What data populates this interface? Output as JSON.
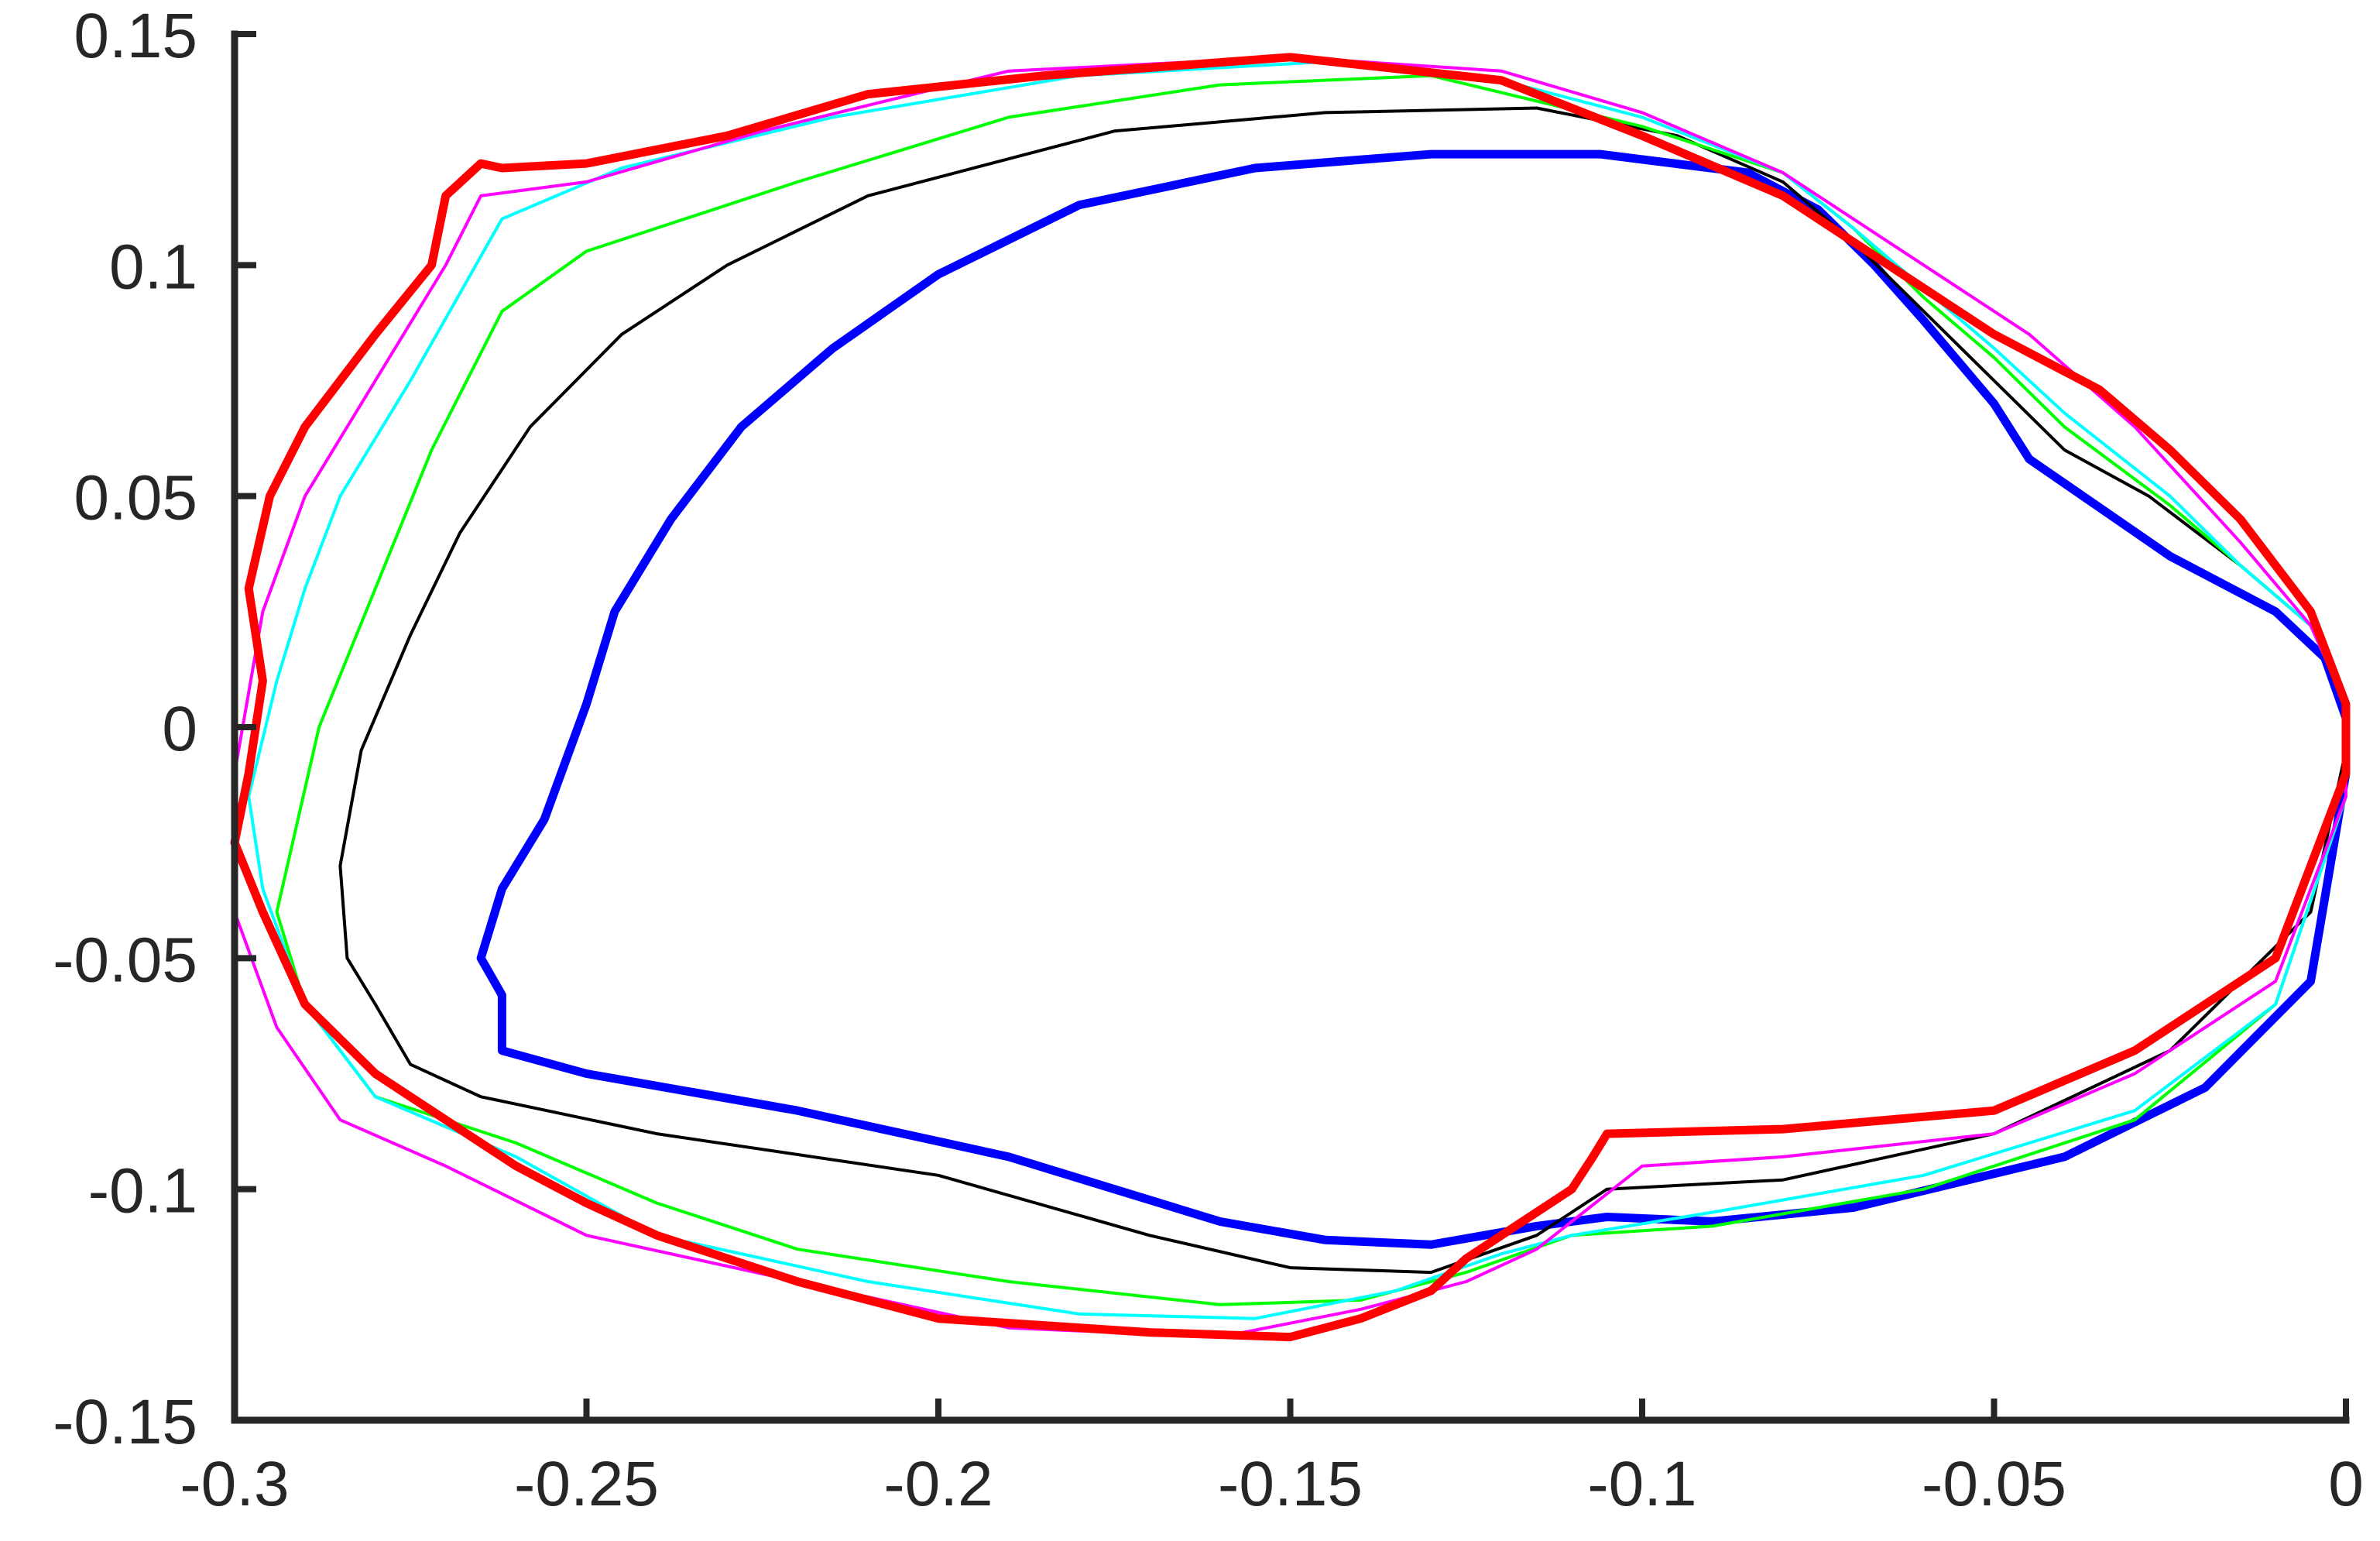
{
  "chart_data": {
    "type": "line",
    "title": "",
    "xlabel": "",
    "ylabel": "",
    "xlim": [
      -0.3,
      0
    ],
    "ylim": [
      -0.15,
      0.15
    ],
    "grid": false,
    "legend": "none",
    "x_ticks": [
      {
        "value": -0.3,
        "label": "-0.3"
      },
      {
        "value": -0.25,
        "label": "-0.25"
      },
      {
        "value": -0.2,
        "label": "-0.2"
      },
      {
        "value": -0.15,
        "label": "-0.15"
      },
      {
        "value": -0.1,
        "label": "-0.1"
      },
      {
        "value": -0.05,
        "label": "-0.05"
      },
      {
        "value": 0,
        "label": "0"
      }
    ],
    "y_ticks": [
      {
        "value": 0.15,
        "label": "0.15"
      },
      {
        "value": 0.1,
        "label": "0.1"
      },
      {
        "value": 0.05,
        "label": "0.05"
      },
      {
        "value": 0,
        "label": "0"
      },
      {
        "value": -0.05,
        "label": "-0.05"
      },
      {
        "value": -0.1,
        "label": "-0.1"
      },
      {
        "value": -0.15,
        "label": "-0.15"
      }
    ],
    "series": [
      {
        "color": "#0000ff",
        "points": [
          [
            -0.106,
            0.124
          ],
          [
            -0.13,
            0.124
          ],
          [
            -0.155,
            0.121
          ],
          [
            -0.18,
            0.113
          ],
          [
            -0.2,
            0.098
          ],
          [
            -0.215,
            0.082
          ],
          [
            -0.228,
            0.065
          ],
          [
            -0.238,
            0.045
          ],
          [
            -0.246,
            0.025
          ],
          [
            -0.25,
            0.005
          ],
          [
            -0.256,
            -0.02
          ],
          [
            -0.262,
            -0.035
          ],
          [
            -0.265,
            -0.05
          ],
          [
            -0.262,
            -0.058
          ],
          [
            -0.262,
            -0.07
          ],
          [
            -0.25,
            -0.075
          ],
          [
            -0.22,
            -0.083
          ],
          [
            -0.19,
            -0.093
          ],
          [
            -0.16,
            -0.107
          ],
          [
            -0.145,
            -0.111
          ],
          [
            -0.13,
            -0.112
          ],
          [
            -0.115,
            -0.108
          ],
          [
            -0.105,
            -0.106
          ],
          [
            -0.09,
            -0.107
          ],
          [
            -0.07,
            -0.104
          ],
          [
            -0.04,
            -0.093
          ],
          [
            -0.02,
            -0.078
          ],
          [
            -0.005,
            -0.055
          ],
          [
            0,
            -0.01
          ],
          [
            0,
            0.002
          ],
          [
            -0.003,
            0.015
          ],
          [
            -0.01,
            0.025
          ],
          [
            -0.025,
            0.037
          ],
          [
            -0.045,
            0.058
          ],
          [
            -0.05,
            0.07
          ],
          [
            -0.06,
            0.088
          ],
          [
            -0.067,
            0.1
          ],
          [
            -0.075,
            0.112
          ],
          [
            -0.085,
            0.12
          ],
          [
            -0.106,
            0.124
          ]
        ]
      },
      {
        "color": "#000000",
        "points": [
          [
            -0.115,
            0.134
          ],
          [
            -0.145,
            0.133
          ],
          [
            -0.175,
            0.129
          ],
          [
            -0.21,
            0.115
          ],
          [
            -0.23,
            0.1
          ],
          [
            -0.245,
            0.085
          ],
          [
            -0.258,
            0.065
          ],
          [
            -0.268,
            0.042
          ],
          [
            -0.275,
            0.02
          ],
          [
            -0.282,
            -0.005
          ],
          [
            -0.285,
            -0.03
          ],
          [
            -0.284,
            -0.05
          ],
          [
            -0.28,
            -0.06
          ],
          [
            -0.275,
            -0.073
          ],
          [
            -0.265,
            -0.08
          ],
          [
            -0.24,
            -0.088
          ],
          [
            -0.2,
            -0.097
          ],
          [
            -0.17,
            -0.11
          ],
          [
            -0.15,
            -0.117
          ],
          [
            -0.13,
            -0.118
          ],
          [
            -0.115,
            -0.11
          ],
          [
            -0.105,
            -0.1
          ],
          [
            -0.08,
            -0.098
          ],
          [
            -0.05,
            -0.088
          ],
          [
            -0.025,
            -0.07
          ],
          [
            -0.005,
            -0.04
          ],
          [
            0,
            -0.005
          ],
          [
            0,
            0.005
          ],
          [
            -0.005,
            0.022
          ],
          [
            -0.015,
            0.035
          ],
          [
            -0.028,
            0.05
          ],
          [
            -0.04,
            0.06
          ],
          [
            -0.05,
            0.075
          ],
          [
            -0.06,
            0.09
          ],
          [
            -0.07,
            0.105
          ],
          [
            -0.08,
            0.118
          ],
          [
            -0.095,
            0.128
          ],
          [
            -0.115,
            0.134
          ]
        ]
      },
      {
        "color": "#00ff00",
        "points": [
          [
            -0.13,
            0.141
          ],
          [
            -0.16,
            0.139
          ],
          [
            -0.19,
            0.132
          ],
          [
            -0.22,
            0.118
          ],
          [
            -0.25,
            0.103
          ],
          [
            -0.262,
            0.09
          ],
          [
            -0.272,
            0.06
          ],
          [
            -0.28,
            0.03
          ],
          [
            -0.288,
            0.0
          ],
          [
            -0.294,
            -0.04
          ],
          [
            -0.29,
            -0.06
          ],
          [
            -0.28,
            -0.08
          ],
          [
            -0.26,
            -0.09
          ],
          [
            -0.24,
            -0.103
          ],
          [
            -0.22,
            -0.113
          ],
          [
            -0.19,
            -0.12
          ],
          [
            -0.16,
            -0.125
          ],
          [
            -0.14,
            -0.124
          ],
          [
            -0.125,
            -0.118
          ],
          [
            -0.11,
            -0.11
          ],
          [
            -0.09,
            -0.108
          ],
          [
            -0.06,
            -0.1
          ],
          [
            -0.03,
            -0.085
          ],
          [
            -0.01,
            -0.06
          ],
          [
            0,
            -0.015
          ],
          [
            0,
            0.005
          ],
          [
            -0.005,
            0.022
          ],
          [
            -0.015,
            0.035
          ],
          [
            -0.025,
            0.048
          ],
          [
            -0.04,
            0.065
          ],
          [
            -0.05,
            0.08
          ],
          [
            -0.06,
            0.093
          ],
          [
            -0.07,
            0.108
          ],
          [
            -0.08,
            0.12
          ],
          [
            -0.1,
            0.13
          ],
          [
            -0.13,
            0.141
          ]
        ]
      },
      {
        "color": "#00ffff",
        "points": [
          [
            -0.145,
            0.144
          ],
          [
            -0.18,
            0.141
          ],
          [
            -0.215,
            0.132
          ],
          [
            -0.245,
            0.121
          ],
          [
            -0.262,
            0.11
          ],
          [
            -0.275,
            0.075
          ],
          [
            -0.285,
            0.05
          ],
          [
            -0.29,
            0.03
          ],
          [
            -0.294,
            0.01
          ],
          [
            -0.298,
            -0.015
          ],
          [
            -0.296,
            -0.035
          ],
          [
            -0.29,
            -0.06
          ],
          [
            -0.28,
            -0.08
          ],
          [
            -0.26,
            -0.093
          ],
          [
            -0.24,
            -0.11
          ],
          [
            -0.21,
            -0.12
          ],
          [
            -0.18,
            -0.127
          ],
          [
            -0.155,
            -0.128
          ],
          [
            -0.135,
            -0.122
          ],
          [
            -0.12,
            -0.114
          ],
          [
            -0.11,
            -0.11
          ],
          [
            -0.09,
            -0.105
          ],
          [
            -0.06,
            -0.097
          ],
          [
            -0.03,
            -0.083
          ],
          [
            -0.01,
            -0.06
          ],
          [
            0,
            -0.015
          ],
          [
            0,
            0.005
          ],
          [
            -0.005,
            0.022
          ],
          [
            -0.015,
            0.035
          ],
          [
            -0.025,
            0.05
          ],
          [
            -0.04,
            0.068
          ],
          [
            -0.05,
            0.082
          ],
          [
            -0.06,
            0.095
          ],
          [
            -0.07,
            0.108
          ],
          [
            -0.08,
            0.12
          ],
          [
            -0.1,
            0.132
          ],
          [
            -0.12,
            0.14
          ],
          [
            -0.145,
            0.144
          ]
        ]
      },
      {
        "color": "#ff00ff",
        "points": [
          [
            -0.15,
            0.145
          ],
          [
            -0.19,
            0.142
          ],
          [
            -0.225,
            0.129
          ],
          [
            -0.25,
            0.118
          ],
          [
            -0.265,
            0.115
          ],
          [
            -0.27,
            0.1
          ],
          [
            -0.28,
            0.075
          ],
          [
            -0.29,
            0.05
          ],
          [
            -0.296,
            0.025
          ],
          [
            -0.3,
            -0.01
          ],
          [
            -0.3,
            -0.04
          ],
          [
            -0.294,
            -0.065
          ],
          [
            -0.285,
            -0.085
          ],
          [
            -0.27,
            -0.095
          ],
          [
            -0.25,
            -0.11
          ],
          [
            -0.22,
            -0.12
          ],
          [
            -0.19,
            -0.13
          ],
          [
            -0.16,
            -0.132
          ],
          [
            -0.14,
            -0.126
          ],
          [
            -0.125,
            -0.12
          ],
          [
            -0.115,
            -0.113
          ],
          [
            -0.1,
            -0.095
          ],
          [
            -0.08,
            -0.093
          ],
          [
            -0.05,
            -0.088
          ],
          [
            -0.03,
            -0.075
          ],
          [
            -0.01,
            -0.055
          ],
          [
            0,
            -0.015
          ],
          [
            0,
            0.005
          ],
          [
            -0.005,
            0.022
          ],
          [
            -0.015,
            0.04
          ],
          [
            -0.03,
            0.065
          ],
          [
            -0.045,
            0.085
          ],
          [
            -0.06,
            0.1
          ],
          [
            -0.07,
            0.11
          ],
          [
            -0.08,
            0.12
          ],
          [
            -0.1,
            0.133
          ],
          [
            -0.12,
            0.142
          ],
          [
            -0.15,
            0.145
          ]
        ]
      },
      {
        "color": "#ff0000",
        "points": [
          [
            -0.15,
            0.145
          ],
          [
            -0.185,
            0.141
          ],
          [
            -0.21,
            0.137
          ],
          [
            -0.23,
            0.128
          ],
          [
            -0.25,
            0.122
          ],
          [
            -0.262,
            0.121
          ],
          [
            -0.265,
            0.122
          ],
          [
            -0.27,
            0.115
          ],
          [
            -0.272,
            0.1
          ],
          [
            -0.28,
            0.085
          ],
          [
            -0.29,
            0.065
          ],
          [
            -0.295,
            0.05
          ],
          [
            -0.298,
            0.03
          ],
          [
            -0.296,
            0.01
          ],
          [
            -0.298,
            -0.01
          ],
          [
            -0.3,
            -0.025
          ],
          [
            -0.296,
            -0.04
          ],
          [
            -0.29,
            -0.06
          ],
          [
            -0.28,
            -0.075
          ],
          [
            -0.27,
            -0.085
          ],
          [
            -0.26,
            -0.095
          ],
          [
            -0.25,
            -0.103
          ],
          [
            -0.24,
            -0.11
          ],
          [
            -0.22,
            -0.12
          ],
          [
            -0.2,
            -0.128
          ],
          [
            -0.17,
            -0.131
          ],
          [
            -0.15,
            -0.132
          ],
          [
            -0.14,
            -0.128
          ],
          [
            -0.13,
            -0.122
          ],
          [
            -0.125,
            -0.115
          ],
          [
            -0.115,
            -0.105
          ],
          [
            -0.11,
            -0.1
          ],
          [
            -0.107,
            -0.093
          ],
          [
            -0.105,
            -0.088
          ],
          [
            -0.08,
            -0.087
          ],
          [
            -0.05,
            -0.083
          ],
          [
            -0.03,
            -0.07
          ],
          [
            -0.01,
            -0.05
          ],
          [
            0,
            -0.01
          ],
          [
            0,
            0.005
          ],
          [
            -0.005,
            0.025
          ],
          [
            -0.015,
            0.045
          ],
          [
            -0.025,
            0.06
          ],
          [
            -0.035,
            0.073
          ],
          [
            -0.05,
            0.085
          ],
          [
            -0.065,
            0.1
          ],
          [
            -0.08,
            0.115
          ],
          [
            -0.1,
            0.128
          ],
          [
            -0.12,
            0.14
          ],
          [
            -0.15,
            0.145
          ]
        ]
      }
    ]
  }
}
